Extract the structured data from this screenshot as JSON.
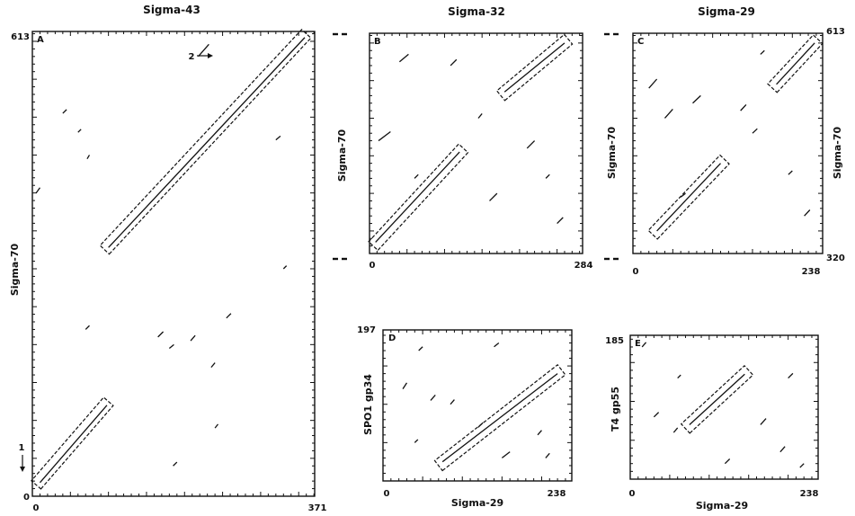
{
  "chart_data": [
    {
      "id": "A",
      "type": "scatter",
      "subtype": "dot-matrix",
      "panel_letter": "A",
      "title": "Sigma-43",
      "xlabel": "",
      "ylabel": "Sigma-70",
      "xlim": [
        0,
        371
      ],
      "ylim": [
        0,
        613
      ],
      "x_tick_labels": [
        "0",
        "371"
      ],
      "y_tick_labels": [
        "0",
        "613"
      ],
      "annotations": [
        {
          "text": "1",
          "x": 15,
          "y": 50,
          "arrow": "down"
        },
        {
          "text": "2",
          "x": 200,
          "y": 583,
          "arrow": "right"
        }
      ],
      "boxes": [
        {
          "x1": 5,
          "y1": 15,
          "x2": 100,
          "y2": 125
        },
        {
          "x1": 95,
          "y1": 325,
          "x2": 360,
          "y2": 610
        }
      ],
      "diagonals": [
        {
          "x1": 10,
          "y1": 18,
          "x2": 98,
          "y2": 120
        },
        {
          "x1": 100,
          "y1": 328,
          "x2": 358,
          "y2": 605
        },
        {
          "x1": 218,
          "y1": 580,
          "x2": 232,
          "y2": 596
        }
      ],
      "segments": [
        {
          "x1": 40,
          "y1": 505,
          "x2": 45,
          "y2": 510
        },
        {
          "x1": 60,
          "y1": 480,
          "x2": 64,
          "y2": 484
        },
        {
          "x1": 72,
          "y1": 445,
          "x2": 75,
          "y2": 450
        },
        {
          "x1": 5,
          "y1": 400,
          "x2": 10,
          "y2": 407
        },
        {
          "x1": 70,
          "y1": 220,
          "x2": 75,
          "y2": 225
        },
        {
          "x1": 165,
          "y1": 210,
          "x2": 172,
          "y2": 217
        },
        {
          "x1": 180,
          "y1": 195,
          "x2": 186,
          "y2": 200
        },
        {
          "x1": 208,
          "y1": 205,
          "x2": 214,
          "y2": 212
        },
        {
          "x1": 235,
          "y1": 170,
          "x2": 240,
          "y2": 176
        },
        {
          "x1": 240,
          "y1": 90,
          "x2": 244,
          "y2": 95
        },
        {
          "x1": 185,
          "y1": 40,
          "x2": 190,
          "y2": 45
        },
        {
          "x1": 320,
          "y1": 470,
          "x2": 326,
          "y2": 475
        },
        {
          "x1": 330,
          "y1": 300,
          "x2": 334,
          "y2": 304
        },
        {
          "x1": 255,
          "y1": 235,
          "x2": 261,
          "y2": 241
        }
      ]
    },
    {
      "id": "B",
      "type": "scatter",
      "subtype": "dot-matrix",
      "panel_letter": "B",
      "title": "Sigma-32",
      "xlabel": "",
      "ylabel": "Sigma-70",
      "xlim": [
        0,
        284
      ],
      "ylim": [
        320,
        613
      ],
      "x_tick_labels": [
        "0",
        "284"
      ],
      "y_tick_labels": [],
      "boxes": [
        {
          "x1": 5,
          "y1": 330,
          "x2": 125,
          "y2": 460
        },
        {
          "x1": 175,
          "y1": 530,
          "x2": 265,
          "y2": 605
        }
      ],
      "diagonals": [
        {
          "x1": 8,
          "y1": 335,
          "x2": 120,
          "y2": 455
        },
        {
          "x1": 180,
          "y1": 535,
          "x2": 260,
          "y2": 600
        }
      ],
      "segments": [
        {
          "x1": 12,
          "y1": 470,
          "x2": 28,
          "y2": 482
        },
        {
          "x1": 40,
          "y1": 575,
          "x2": 52,
          "y2": 585
        },
        {
          "x1": 108,
          "y1": 570,
          "x2": 116,
          "y2": 578
        },
        {
          "x1": 160,
          "y1": 390,
          "x2": 170,
          "y2": 400
        },
        {
          "x1": 210,
          "y1": 460,
          "x2": 220,
          "y2": 470
        },
        {
          "x1": 235,
          "y1": 420,
          "x2": 240,
          "y2": 425
        },
        {
          "x1": 60,
          "y1": 420,
          "x2": 65,
          "y2": 425
        },
        {
          "x1": 145,
          "y1": 500,
          "x2": 150,
          "y2": 506
        },
        {
          "x1": 250,
          "y1": 360,
          "x2": 258,
          "y2": 368
        }
      ]
    },
    {
      "id": "C",
      "type": "scatter",
      "subtype": "dot-matrix",
      "panel_letter": "C",
      "title": "Sigma-29",
      "xlabel": "",
      "ylabel": "Sigma-70",
      "xlim": [
        0,
        238
      ],
      "ylim": [
        320,
        613
      ],
      "x_tick_labels": [
        "0",
        "238"
      ],
      "y_tick_labels": [
        "320",
        "613"
      ],
      "boxes": [
        {
          "x1": 25,
          "y1": 345,
          "x2": 115,
          "y2": 445
        },
        {
          "x1": 175,
          "y1": 540,
          "x2": 232,
          "y2": 605
        }
      ],
      "diagonals": [
        {
          "x1": 30,
          "y1": 350,
          "x2": 110,
          "y2": 440
        },
        {
          "x1": 180,
          "y1": 545,
          "x2": 228,
          "y2": 600
        }
      ],
      "segments": [
        {
          "x1": 20,
          "y1": 540,
          "x2": 30,
          "y2": 552
        },
        {
          "x1": 40,
          "y1": 500,
          "x2": 50,
          "y2": 512
        },
        {
          "x1": 75,
          "y1": 520,
          "x2": 85,
          "y2": 530
        },
        {
          "x1": 135,
          "y1": 510,
          "x2": 142,
          "y2": 518
        },
        {
          "x1": 160,
          "y1": 585,
          "x2": 165,
          "y2": 590
        },
        {
          "x1": 215,
          "y1": 370,
          "x2": 222,
          "y2": 378
        },
        {
          "x1": 195,
          "y1": 425,
          "x2": 200,
          "y2": 430
        },
        {
          "x1": 150,
          "y1": 480,
          "x2": 156,
          "y2": 486
        },
        {
          "x1": 60,
          "y1": 395,
          "x2": 66,
          "y2": 400
        }
      ]
    },
    {
      "id": "D",
      "type": "scatter",
      "subtype": "dot-matrix",
      "panel_letter": "D",
      "title": "",
      "xlabel": "Sigma-29",
      "ylabel": "SPO1 gp34",
      "xlim": [
        0,
        238
      ],
      "ylim": [
        0,
        197
      ],
      "x_tick_labels": [
        "0",
        "238"
      ],
      "y_tick_labels": [
        "197"
      ],
      "boxes": [
        {
          "x1": 70,
          "y1": 20,
          "x2": 225,
          "y2": 145
        }
      ],
      "diagonals": [
        {
          "x1": 75,
          "y1": 25,
          "x2": 220,
          "y2": 140
        }
      ],
      "segments": [
        {
          "x1": 25,
          "y1": 120,
          "x2": 30,
          "y2": 128
        },
        {
          "x1": 45,
          "y1": 170,
          "x2": 50,
          "y2": 175
        },
        {
          "x1": 60,
          "y1": 105,
          "x2": 66,
          "y2": 112
        },
        {
          "x1": 85,
          "y1": 100,
          "x2": 90,
          "y2": 106
        },
        {
          "x1": 120,
          "y1": 70,
          "x2": 126,
          "y2": 76
        },
        {
          "x1": 150,
          "y1": 30,
          "x2": 160,
          "y2": 38
        },
        {
          "x1": 195,
          "y1": 60,
          "x2": 200,
          "y2": 66
        },
        {
          "x1": 40,
          "y1": 50,
          "x2": 44,
          "y2": 54
        },
        {
          "x1": 140,
          "y1": 175,
          "x2": 146,
          "y2": 180
        },
        {
          "x1": 205,
          "y1": 30,
          "x2": 210,
          "y2": 36
        }
      ]
    },
    {
      "id": "E",
      "type": "scatter",
      "subtype": "dot-matrix",
      "panel_letter": "E",
      "title": "",
      "xlabel": "Sigma-29",
      "ylabel": "T4 gp55",
      "xlim": [
        0,
        238
      ],
      "ylim": [
        0,
        185
      ],
      "x_tick_labels": [
        "0",
        "238"
      ],
      "y_tick_labels": [
        "185"
      ],
      "boxes": [
        {
          "x1": 70,
          "y1": 65,
          "x2": 150,
          "y2": 140
        }
      ],
      "diagonals": [
        {
          "x1": 75,
          "y1": 70,
          "x2": 145,
          "y2": 135
        }
      ],
      "segments": [
        {
          "x1": 30,
          "y1": 80,
          "x2": 36,
          "y2": 86
        },
        {
          "x1": 55,
          "y1": 60,
          "x2": 60,
          "y2": 66
        },
        {
          "x1": 165,
          "y1": 70,
          "x2": 172,
          "y2": 78
        },
        {
          "x1": 190,
          "y1": 35,
          "x2": 196,
          "y2": 42
        },
        {
          "x1": 120,
          "y1": 20,
          "x2": 126,
          "y2": 26
        },
        {
          "x1": 200,
          "y1": 130,
          "x2": 206,
          "y2": 136
        },
        {
          "x1": 15,
          "y1": 170,
          "x2": 20,
          "y2": 176
        },
        {
          "x1": 215,
          "y1": 15,
          "x2": 220,
          "y2": 20
        },
        {
          "x1": 60,
          "y1": 130,
          "x2": 64,
          "y2": 134
        }
      ]
    }
  ]
}
